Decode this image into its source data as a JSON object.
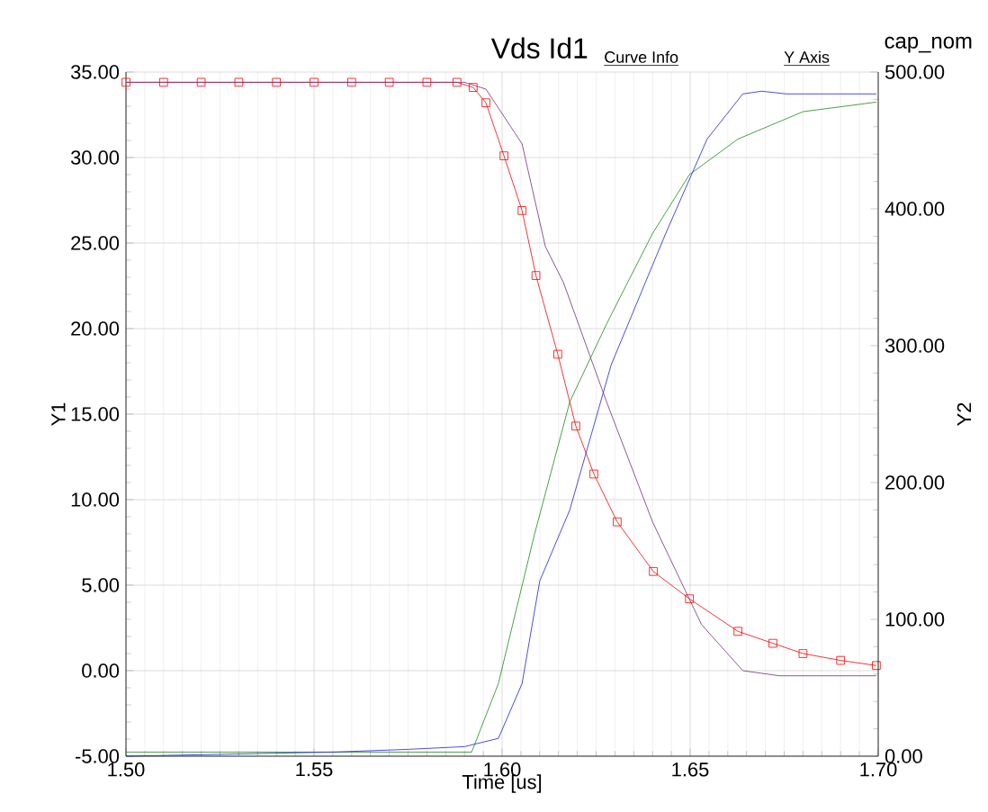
{
  "chart_data": {
    "type": "line",
    "title": "Vds Id1",
    "xlabel": "Time [us]",
    "ylabel": "Y1",
    "y2label": "Y2",
    "annotations": [
      "cap_nom",
      "Curve Info",
      "Y Axis"
    ],
    "xlim": [
      1.5,
      1.7
    ],
    "xticks": [
      {
        "value": 1.5,
        "label": "1.50"
      },
      {
        "value": 1.55,
        "label": "1.55"
      },
      {
        "value": 1.6,
        "label": "1.60"
      },
      {
        "value": 1.65,
        "label": "1.65"
      },
      {
        "value": 1.7,
        "label": "1.70"
      }
    ],
    "ylim": [
      -5,
      35
    ],
    "yticks": [
      {
        "value": -5,
        "label": "-5.00"
      },
      {
        "value": 0,
        "label": "0.00"
      },
      {
        "value": 5,
        "label": "5.00"
      },
      {
        "value": 10,
        "label": "10.00"
      },
      {
        "value": 15,
        "label": "15.00"
      },
      {
        "value": 20,
        "label": "20.00"
      },
      {
        "value": 25,
        "label": "25.00"
      },
      {
        "value": 30,
        "label": "30.00"
      },
      {
        "value": 35,
        "label": "35.00"
      }
    ],
    "y2lim": [
      0,
      500
    ],
    "y2ticks": [
      {
        "value": 0,
        "label": "0.00"
      },
      {
        "value": 100,
        "label": "100.00"
      },
      {
        "value": 200,
        "label": "200.00"
      },
      {
        "value": 300,
        "label": "300.00"
      },
      {
        "value": 400,
        "label": "400.00"
      },
      {
        "value": 500,
        "label": "500.00"
      }
    ],
    "grid": true,
    "series": [
      {
        "color": "#ff0000",
        "marker": "square",
        "x": [
          1.5,
          1.51,
          1.52,
          1.53,
          1.54,
          1.55,
          1.56,
          1.57,
          1.58,
          1.588,
          1.5923,
          1.5957,
          1.6005,
          1.6053,
          1.609,
          1.6148,
          1.6196,
          1.6244,
          1.6306,
          1.6402,
          1.6498,
          1.6627,
          1.672,
          1.68,
          1.69,
          1.6995
        ],
        "values": [
          34.4,
          34.4,
          34.4,
          34.4,
          34.4,
          34.4,
          34.4,
          34.4,
          34.4,
          34.4,
          34.1,
          33.2,
          30.1,
          26.9,
          23.1,
          18.5,
          14.3,
          11.5,
          8.7,
          5.8,
          4.2,
          2.3,
          1.6,
          1.0,
          0.6,
          0.3
        ]
      },
      {
        "color": "#70307a",
        "x": [
          1.5,
          1.59,
          1.5957,
          1.6053,
          1.6115,
          1.6163,
          1.6278,
          1.64,
          1.653,
          1.664,
          1.6737,
          1.6995
        ],
        "values": [
          34.4,
          34.4,
          34.0,
          30.8,
          24.8,
          22.7,
          15.7,
          8.7,
          2.7,
          0.0,
          -0.3,
          -0.3
        ]
      },
      {
        "color": "#1a8a1a",
        "axis": "y2",
        "x": [
          1.5,
          1.5919,
          1.599,
          1.6086,
          1.618,
          1.6278,
          1.64,
          1.6498,
          1.6627,
          1.68,
          1.6995
        ],
        "values": [
          3,
          3,
          53,
          162,
          259,
          316,
          382,
          425,
          451,
          471,
          478
        ]
      },
      {
        "color": "#2020e0",
        "axis": "y2",
        "x": [
          1.5,
          1.555,
          1.575,
          1.59,
          1.599,
          1.6053,
          1.61,
          1.618,
          1.629,
          1.6435,
          1.6545,
          1.664,
          1.669,
          1.6756,
          1.6995
        ],
        "values": [
          0,
          3,
          5,
          7,
          13,
          53,
          128,
          180,
          286,
          382,
          451,
          484,
          486,
          484,
          484
        ]
      }
    ]
  }
}
